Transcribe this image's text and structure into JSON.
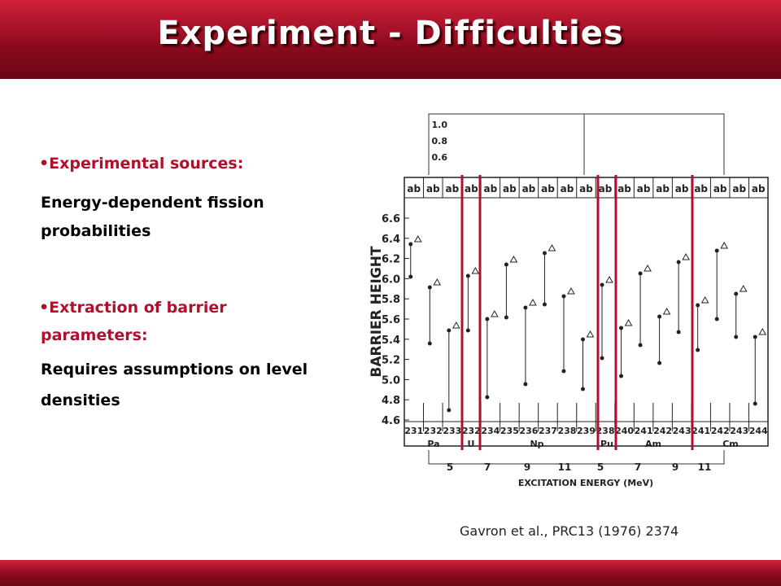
{
  "header": {
    "title": "Experiment - Difficulties"
  },
  "body": {
    "items": [
      {
        "heading": "Experimental sources:",
        "text": [
          "Energy-dependent fission",
          "probabilities"
        ]
      },
      {
        "heading": "Extraction of barrier",
        "heading2": "parameters:",
        "text": [
          "Requires assumptions on level",
          "densities"
        ]
      }
    ]
  },
  "figure": {
    "y_label": "BARRIER HEIGHT",
    "x_label": "EXCITATION ENERGY (MeV)",
    "yticks": [
      "6.6",
      "6.4",
      "6.2",
      "6.0",
      "5.8",
      "5.6",
      "5.4",
      "5.2",
      "5.0",
      "4.8",
      "4.6"
    ],
    "back_yticks": [
      "1.0",
      "0.8",
      "0.6"
    ],
    "column_header": "ab",
    "isotopes": [
      "231",
      "232",
      "233",
      "232",
      "234",
      "235",
      "236",
      "237",
      "238",
      "239",
      "238",
      "240",
      "241",
      "242",
      "243",
      "241",
      "242",
      "243",
      "244"
    ],
    "elements": [
      "Pa",
      "U",
      "Np",
      "Pu",
      "Am",
      "Cm"
    ],
    "xticks": [
      "5",
      "7",
      "9",
      "11",
      "5",
      "7",
      "9",
      "11"
    ]
  },
  "citation": "Gavron et al., PRC13 (1976) 2374"
}
